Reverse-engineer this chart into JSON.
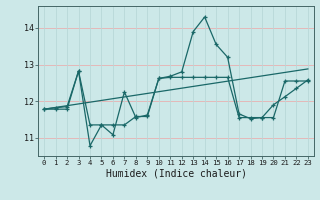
{
  "xlabel": "Humidex (Indice chaleur)",
  "bg_color": "#cce8e8",
  "grid_color_h": "#e8b0b0",
  "grid_color_v": "#b8d8d8",
  "line_color": "#1a6868",
  "xlim": [
    -0.5,
    23.5
  ],
  "ylim": [
    10.5,
    14.6
  ],
  "xticks": [
    0,
    1,
    2,
    3,
    4,
    5,
    6,
    7,
    8,
    9,
    10,
    11,
    12,
    13,
    14,
    15,
    16,
    17,
    18,
    19,
    20,
    21,
    22,
    23
  ],
  "yticks": [
    11,
    12,
    13,
    14
  ],
  "series1_x": [
    0,
    1,
    2,
    3,
    4,
    5,
    6,
    7,
    8,
    9,
    10,
    11,
    12,
    13,
    14,
    15,
    16,
    17,
    18,
    19,
    20,
    21,
    22,
    23
  ],
  "series1_y": [
    11.78,
    11.82,
    11.85,
    12.82,
    10.78,
    11.35,
    11.08,
    12.25,
    11.55,
    11.62,
    12.62,
    12.68,
    12.8,
    13.9,
    14.3,
    13.55,
    13.2,
    11.65,
    11.52,
    11.55,
    11.9,
    12.12,
    12.35,
    12.58
  ],
  "series2_x": [
    0,
    1,
    2,
    3,
    4,
    5,
    6,
    7,
    8,
    9,
    10,
    11,
    12,
    13,
    14,
    15,
    16,
    17,
    18,
    19,
    20,
    21,
    22,
    23
  ],
  "series2_y": [
    11.78,
    11.78,
    11.78,
    12.82,
    11.35,
    11.35,
    11.35,
    11.35,
    11.58,
    11.58,
    12.62,
    12.65,
    12.65,
    12.65,
    12.65,
    12.65,
    12.65,
    11.55,
    11.55,
    11.55,
    11.55,
    12.55,
    12.55,
    12.55
  ],
  "series3_x": [
    0,
    23
  ],
  "series3_y": [
    11.78,
    12.88
  ]
}
